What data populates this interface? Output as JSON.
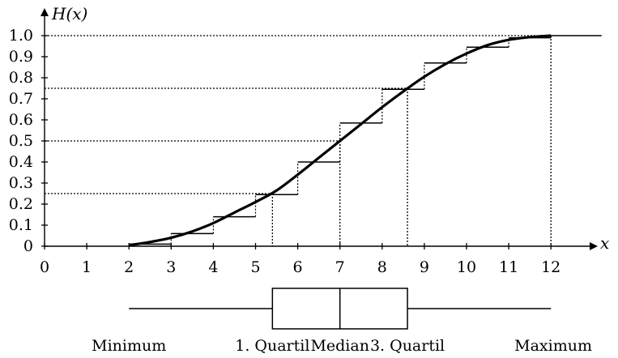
{
  "chart_data": {
    "type": "line",
    "ylabel": "H(x)",
    "xlabel": "x",
    "xlim": [
      0,
      12
    ],
    "ylim": [
      0,
      1
    ],
    "x_ticks": [
      "0",
      "1",
      "2",
      "3",
      "4",
      "5",
      "6",
      "7",
      "8",
      "9",
      "10",
      "11",
      "12"
    ],
    "y_ticks": [
      "0",
      "0.1",
      "0.2",
      "0.3",
      "0.4",
      "0.5",
      "0.6",
      "0.7",
      "0.8",
      "0.9",
      "1.0"
    ],
    "step_function": {
      "x": [
        2,
        3,
        4,
        5,
        6,
        7,
        8,
        9,
        10,
        11,
        12
      ],
      "y": [
        0.01,
        0.06,
        0.14,
        0.245,
        0.4,
        0.585,
        0.745,
        0.87,
        0.945,
        0.99,
        1.0
      ]
    },
    "smooth_curve": {
      "x": [
        2,
        2.5,
        3,
        3.5,
        4,
        4.5,
        5,
        5.5,
        6,
        6.5,
        7,
        7.5,
        8,
        8.5,
        9,
        9.5,
        10,
        10.5,
        11,
        11.5,
        12
      ],
      "y": [
        0.005,
        0.02,
        0.04,
        0.07,
        0.11,
        0.16,
        0.21,
        0.265,
        0.34,
        0.42,
        0.5,
        0.58,
        0.66,
        0.735,
        0.805,
        0.865,
        0.915,
        0.955,
        0.98,
        0.993,
        1.0
      ]
    },
    "reference_lines": [
      {
        "y": 1.0,
        "x": 12
      },
      {
        "y": 0.75,
        "x": 8.6
      },
      {
        "y": 0.5,
        "x": 7
      },
      {
        "y": 0.25,
        "x": 5.4
      }
    ],
    "boxplot": {
      "min": 2,
      "q1": 5.4,
      "median": 7,
      "q3": 8.6,
      "max": 12
    },
    "box_labels": [
      "Minimum",
      "1. Quartil",
      "Median",
      "3. Quartil",
      "Maximum"
    ]
  }
}
